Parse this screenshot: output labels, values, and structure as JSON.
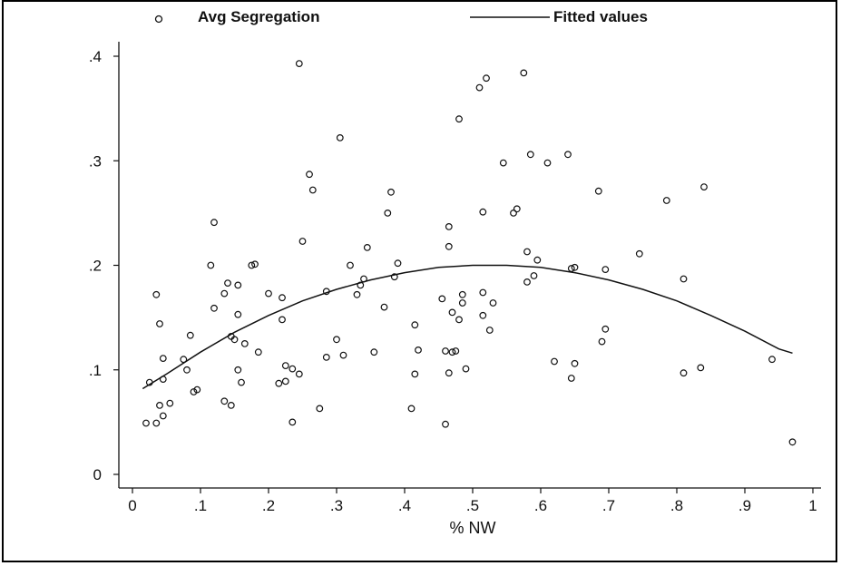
{
  "chart_data": {
    "type": "scatter",
    "xlabel": "% NW",
    "ylabel": "",
    "xlim": [
      0,
      1
    ],
    "ylim": [
      0,
      0.4
    ],
    "x_ticks": [
      "0",
      ".1",
      ".2",
      ".3",
      ".4",
      ".5",
      ".6",
      ".7",
      ".8",
      ".9",
      "1"
    ],
    "y_ticks": [
      "0",
      ".1",
      ".2",
      ".3",
      ".4"
    ],
    "grid": false,
    "legend_position": "top",
    "series": [
      {
        "name": "Avg Segregation",
        "kind": "scatter",
        "marker": "hollow-circle",
        "points": [
          [
            0.02,
            0.049
          ],
          [
            0.025,
            0.088
          ],
          [
            0.035,
            0.172
          ],
          [
            0.035,
            0.049
          ],
          [
            0.04,
            0.066
          ],
          [
            0.04,
            0.144
          ],
          [
            0.045,
            0.111
          ],
          [
            0.045,
            0.056
          ],
          [
            0.045,
            0.091
          ],
          [
            0.055,
            0.068
          ],
          [
            0.075,
            0.11
          ],
          [
            0.08,
            0.1
          ],
          [
            0.085,
            0.133
          ],
          [
            0.09,
            0.079
          ],
          [
            0.095,
            0.081
          ],
          [
            0.115,
            0.2
          ],
          [
            0.12,
            0.241
          ],
          [
            0.12,
            0.159
          ],
          [
            0.135,
            0.173
          ],
          [
            0.135,
            0.07
          ],
          [
            0.14,
            0.183
          ],
          [
            0.145,
            0.066
          ],
          [
            0.145,
            0.132
          ],
          [
            0.15,
            0.129
          ],
          [
            0.155,
            0.1
          ],
          [
            0.155,
            0.153
          ],
          [
            0.155,
            0.181
          ],
          [
            0.16,
            0.088
          ],
          [
            0.165,
            0.125
          ],
          [
            0.175,
            0.2
          ],
          [
            0.18,
            0.201
          ],
          [
            0.185,
            0.117
          ],
          [
            0.2,
            0.173
          ],
          [
            0.215,
            0.087
          ],
          [
            0.22,
            0.148
          ],
          [
            0.22,
            0.169
          ],
          [
            0.225,
            0.104
          ],
          [
            0.225,
            0.089
          ],
          [
            0.235,
            0.101
          ],
          [
            0.235,
            0.05
          ],
          [
            0.245,
            0.393
          ],
          [
            0.245,
            0.096
          ],
          [
            0.25,
            0.223
          ],
          [
            0.26,
            0.287
          ],
          [
            0.265,
            0.272
          ],
          [
            0.275,
            0.063
          ],
          [
            0.285,
            0.112
          ],
          [
            0.285,
            0.175
          ],
          [
            0.3,
            0.129
          ],
          [
            0.305,
            0.322
          ],
          [
            0.31,
            0.114
          ],
          [
            0.32,
            0.2
          ],
          [
            0.33,
            0.172
          ],
          [
            0.335,
            0.181
          ],
          [
            0.34,
            0.187
          ],
          [
            0.345,
            0.217
          ],
          [
            0.355,
            0.117
          ],
          [
            0.37,
            0.16
          ],
          [
            0.375,
            0.25
          ],
          [
            0.38,
            0.27
          ],
          [
            0.385,
            0.189
          ],
          [
            0.39,
            0.202
          ],
          [
            0.41,
            0.063
          ],
          [
            0.415,
            0.096
          ],
          [
            0.415,
            0.143
          ],
          [
            0.42,
            0.119
          ],
          [
            0.455,
            0.168
          ],
          [
            0.46,
            0.048
          ],
          [
            0.46,
            0.118
          ],
          [
            0.465,
            0.237
          ],
          [
            0.465,
            0.218
          ],
          [
            0.465,
            0.097
          ],
          [
            0.47,
            0.155
          ],
          [
            0.47,
            0.117
          ],
          [
            0.475,
            0.118
          ],
          [
            0.48,
            0.148
          ],
          [
            0.48,
            0.34
          ],
          [
            0.485,
            0.172
          ],
          [
            0.485,
            0.164
          ],
          [
            0.49,
            0.101
          ],
          [
            0.51,
            0.37
          ],
          [
            0.515,
            0.174
          ],
          [
            0.515,
            0.251
          ],
          [
            0.515,
            0.152
          ],
          [
            0.52,
            0.379
          ],
          [
            0.525,
            0.138
          ],
          [
            0.53,
            0.164
          ],
          [
            0.545,
            0.298
          ],
          [
            0.56,
            0.25
          ],
          [
            0.565,
            0.254
          ],
          [
            0.575,
            0.384
          ],
          [
            0.58,
            0.213
          ],
          [
            0.58,
            0.184
          ],
          [
            0.585,
            0.306
          ],
          [
            0.59,
            0.19
          ],
          [
            0.595,
            0.205
          ],
          [
            0.61,
            0.298
          ],
          [
            0.62,
            0.108
          ],
          [
            0.64,
            0.306
          ],
          [
            0.645,
            0.092
          ],
          [
            0.645,
            0.197
          ],
          [
            0.65,
            0.106
          ],
          [
            0.65,
            0.198
          ],
          [
            0.685,
            0.271
          ],
          [
            0.69,
            0.127
          ],
          [
            0.695,
            0.196
          ],
          [
            0.695,
            0.139
          ],
          [
            0.745,
            0.211
          ],
          [
            0.785,
            0.262
          ],
          [
            0.81,
            0.187
          ],
          [
            0.81,
            0.097
          ],
          [
            0.835,
            0.102
          ],
          [
            0.84,
            0.275
          ],
          [
            0.94,
            0.11
          ],
          [
            0.97,
            0.031
          ]
        ]
      },
      {
        "name": "Fitted values",
        "kind": "line",
        "points": [
          [
            0.015,
            0.082
          ],
          [
            0.05,
            0.096
          ],
          [
            0.1,
            0.117
          ],
          [
            0.15,
            0.136
          ],
          [
            0.2,
            0.152
          ],
          [
            0.25,
            0.166
          ],
          [
            0.3,
            0.177
          ],
          [
            0.35,
            0.186
          ],
          [
            0.4,
            0.193
          ],
          [
            0.45,
            0.198
          ],
          [
            0.5,
            0.2
          ],
          [
            0.55,
            0.2
          ],
          [
            0.6,
            0.198
          ],
          [
            0.65,
            0.193
          ],
          [
            0.7,
            0.186
          ],
          [
            0.75,
            0.177
          ],
          [
            0.8,
            0.166
          ],
          [
            0.85,
            0.152
          ],
          [
            0.9,
            0.137
          ],
          [
            0.95,
            0.12
          ],
          [
            0.97,
            0.116
          ]
        ]
      }
    ]
  }
}
